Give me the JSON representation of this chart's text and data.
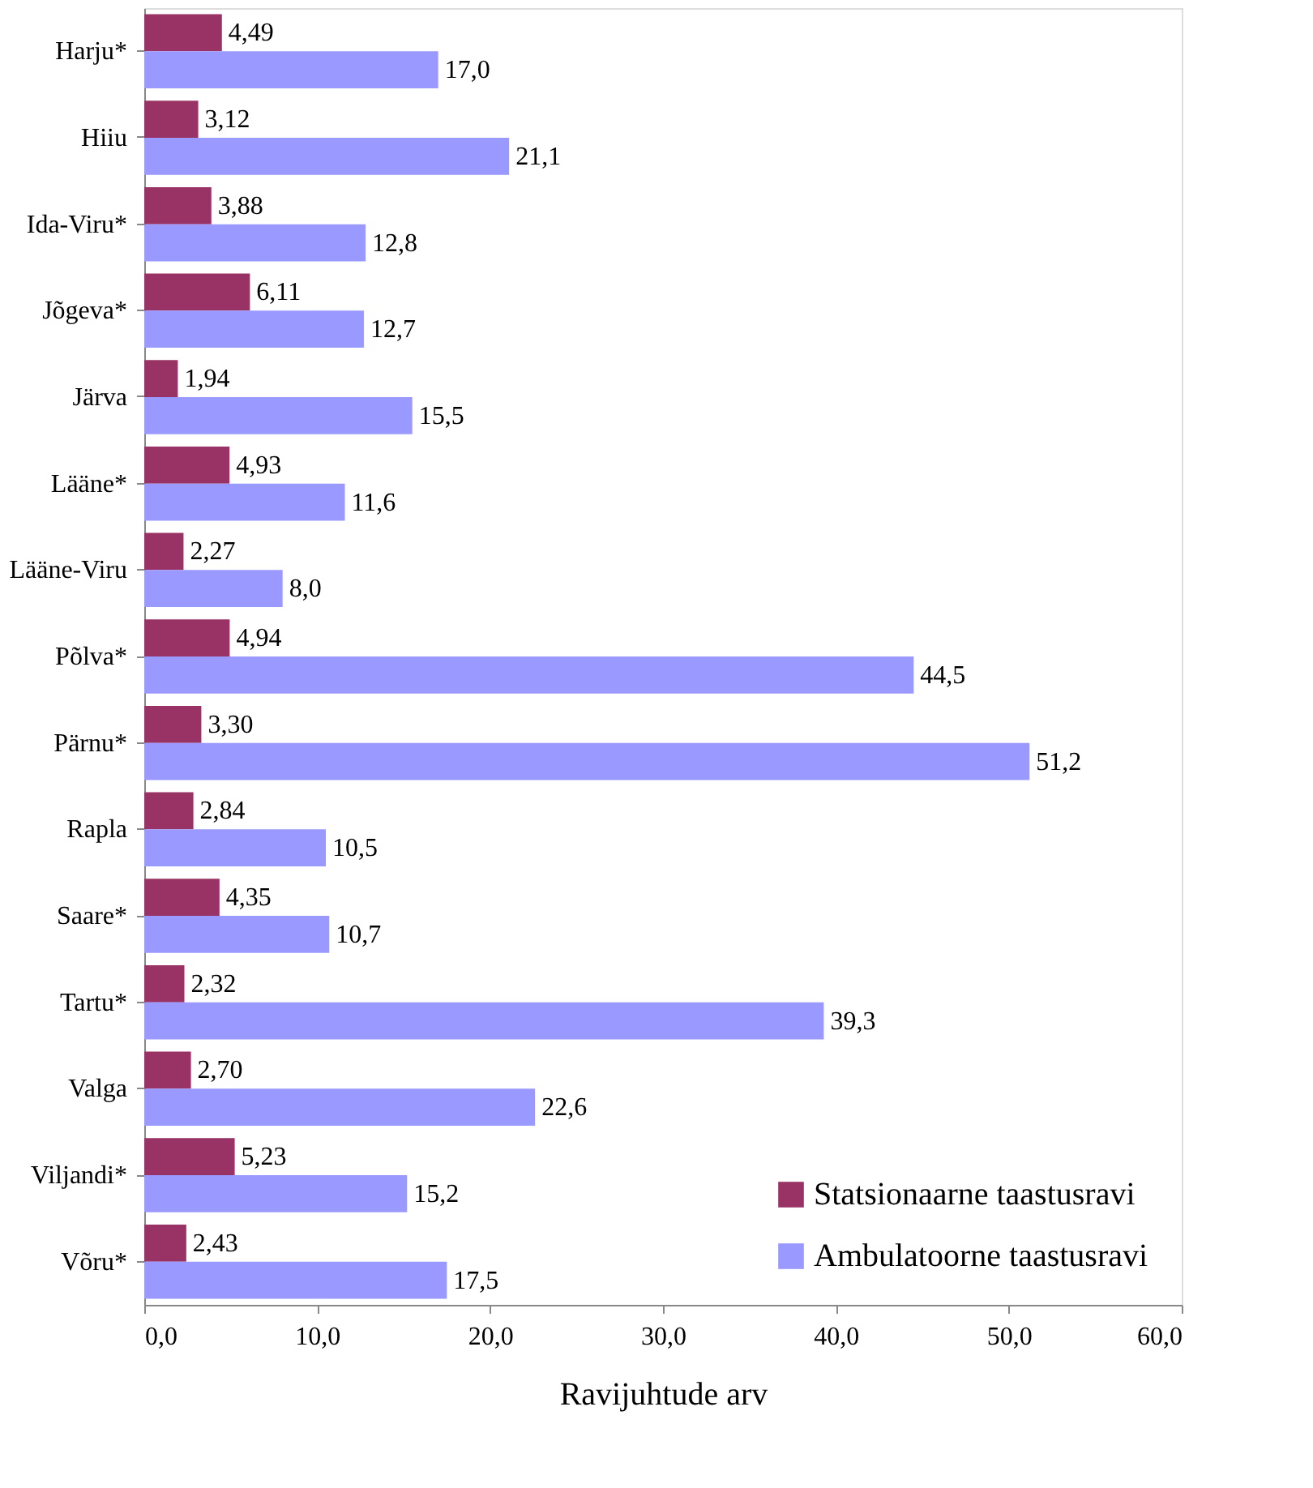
{
  "chart_data": {
    "type": "bar",
    "orientation": "horizontal",
    "xlabel": "Ravijuhtude arv",
    "categories": [
      "Harju*",
      "Hiiu",
      "Ida-Viru*",
      "Jõgeva*",
      "Järva",
      "Lääne*",
      "Lääne-Viru",
      "Põlva*",
      "Pärnu*",
      "Rapla",
      "Saare*",
      "Tartu*",
      "Valga",
      "Viljandi*",
      "Võru*"
    ],
    "series": [
      {
        "name": "Statsionaarne taastusravi",
        "color": "#993366",
        "values": [
          4.49,
          3.12,
          3.88,
          6.11,
          1.94,
          4.93,
          2.27,
          4.94,
          3.3,
          2.84,
          4.35,
          2.32,
          2.7,
          5.23,
          2.43
        ],
        "value_labels": [
          "4,49",
          "3,12",
          "3,88",
          "6,11",
          "1,94",
          "4,93",
          "2,27",
          "4,94",
          "3,30",
          "2,84",
          "4,35",
          "2,32",
          "2,70",
          "5,23",
          "2,43"
        ]
      },
      {
        "name": "Ambulatoorne taastusravi",
        "color": "#9999ff",
        "values": [
          17.0,
          21.1,
          12.8,
          12.7,
          15.5,
          11.6,
          8.0,
          44.5,
          51.2,
          10.5,
          10.7,
          39.3,
          22.6,
          15.2,
          17.5
        ],
        "value_labels": [
          "17,0",
          "21,1",
          "12,8",
          "12,7",
          "15,5",
          "11,6",
          "8,0",
          "44,5",
          "51,2",
          "10,5",
          "10,7",
          "39,3",
          "22,6",
          "15,2",
          "17,5"
        ]
      }
    ],
    "xlim": [
      0,
      60
    ],
    "xticks": [
      {
        "value": 0,
        "label": "0,0"
      },
      {
        "value": 10,
        "label": "10,0"
      },
      {
        "value": 20,
        "label": "20,0"
      },
      {
        "value": 30,
        "label": "30,0"
      },
      {
        "value": 40,
        "label": "40,0"
      },
      {
        "value": 50,
        "label": "50,0"
      },
      {
        "value": 60,
        "label": "60,0"
      }
    ],
    "grid": false,
    "legend": "bottom right"
  }
}
